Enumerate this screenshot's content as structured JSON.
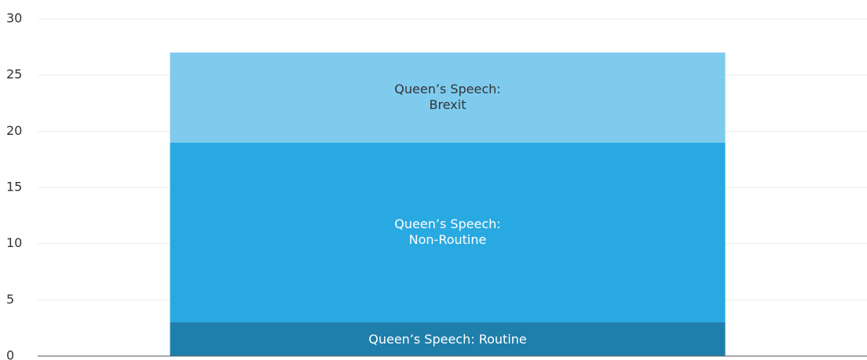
{
  "chart_data": {
    "type": "stacked_bar",
    "categories": [
      null
    ],
    "series": [
      {
        "name": "Queen’s Speech: Routine",
        "color": "#1f7fab",
        "values": [
          3
        ]
      },
      {
        "name": "Queen’s Speech: Non-Routine",
        "color": "#29a9e1",
        "values": [
          16
        ]
      },
      {
        "name": "Queen’s Speech: Brexit",
        "color": "#7ecbee",
        "values": [
          8
        ]
      }
    ],
    "ylim": [
      0,
      30
    ],
    "yticks": [
      0,
      5,
      10,
      15,
      20,
      25,
      30
    ],
    "grid": true
  }
}
